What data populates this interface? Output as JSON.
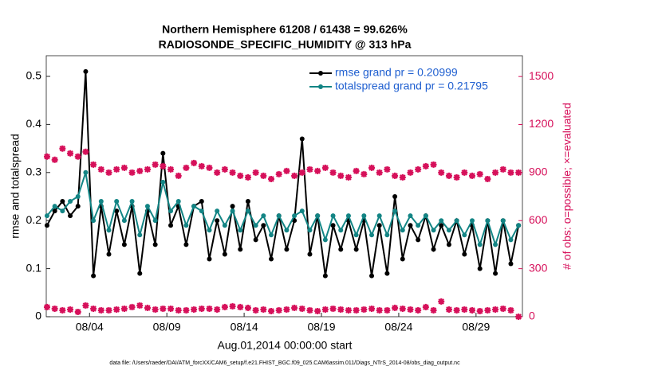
{
  "chart_data": {
    "type": "line",
    "title": "Northern Hemisphere 61208 / 61438 = 99.626%",
    "subtitle": "RADIOSONDE_SPECIFIC_HUMIDITY @ 313 hPa",
    "xlabel": "Aug.01,2014 00:00:00 start",
    "ylabel": "rmse and totalspread",
    "y2label": "# of obs: o=possible; ×=evaluated",
    "footnote": "data file: /Users/raeder/DAI/ATM_forcXX/CAM6_setup/f.e21.FHIST_BGC.f09_025.CAM6assim.011/Diags_NTrS_2014-08/obs_diag_output.nc",
    "xlim": [
      1.2,
      32
    ],
    "xticks": [
      {
        "value": 4,
        "label": "08/04"
      },
      {
        "value": 9,
        "label": "08/09"
      },
      {
        "value": 14,
        "label": "08/14"
      },
      {
        "value": 19,
        "label": "08/19"
      },
      {
        "value": 24,
        "label": "08/24"
      },
      {
        "value": 29,
        "label": "08/29"
      }
    ],
    "ylim": [
      0,
      0.543
    ],
    "yticks": [
      0,
      0.1,
      0.2,
      0.3,
      0.4,
      0.5
    ],
    "y2lim": [
      0,
      1630
    ],
    "y2ticks": [
      0,
      300,
      600,
      900,
      1200,
      1500
    ],
    "grid": false,
    "legend": "upper right",
    "x": [
      1.25,
      1.75,
      2.25,
      2.75,
      3.25,
      3.75,
      4.25,
      4.75,
      5.25,
      5.75,
      6.25,
      6.75,
      7.25,
      7.75,
      8.25,
      8.75,
      9.25,
      9.75,
      10.25,
      10.75,
      11.25,
      11.75,
      12.25,
      12.75,
      13.25,
      13.75,
      14.25,
      14.75,
      15.25,
      15.75,
      16.25,
      16.75,
      17.25,
      17.75,
      18.25,
      18.75,
      19.25,
      19.75,
      20.25,
      20.75,
      21.25,
      21.75,
      22.25,
      22.75,
      23.25,
      23.75,
      24.25,
      24.75,
      25.25,
      25.75,
      26.25,
      26.75,
      27.25,
      27.75,
      28.25,
      28.75,
      29.25,
      29.75,
      30.25,
      30.75,
      31.25,
      31.75
    ],
    "series": [
      {
        "name": "rmse grand pr = 0.20999",
        "color": "#000000",
        "marker": "line",
        "values": [
          0.19,
          0.22,
          0.24,
          0.21,
          0.23,
          0.51,
          0.085,
          0.23,
          0.13,
          0.22,
          0.15,
          0.23,
          0.09,
          0.22,
          0.15,
          0.34,
          0.19,
          0.23,
          0.15,
          0.23,
          0.24,
          0.12,
          0.2,
          0.13,
          0.23,
          0.14,
          0.24,
          0.16,
          0.19,
          0.12,
          0.21,
          0.14,
          0.2,
          0.37,
          0.13,
          0.21,
          0.085,
          0.19,
          0.14,
          0.2,
          0.14,
          0.2,
          0.085,
          0.19,
          0.09,
          0.25,
          0.12,
          0.19,
          0.16,
          0.21,
          0.14,
          0.19,
          0.15,
          0.2,
          0.13,
          0.19,
          0.1,
          0.2,
          0.09,
          0.2,
          0.11,
          0.19
        ]
      },
      {
        "name": "totalspread grand pr = 0.21795",
        "color": "#138585",
        "marker": "line",
        "values": [
          0.21,
          0.23,
          0.22,
          0.24,
          0.25,
          0.3,
          0.2,
          0.24,
          0.18,
          0.24,
          0.2,
          0.24,
          0.17,
          0.23,
          0.2,
          0.28,
          0.22,
          0.24,
          0.19,
          0.23,
          0.22,
          0.18,
          0.22,
          0.19,
          0.22,
          0.18,
          0.22,
          0.19,
          0.21,
          0.17,
          0.21,
          0.18,
          0.21,
          0.22,
          0.18,
          0.21,
          0.16,
          0.21,
          0.18,
          0.21,
          0.17,
          0.21,
          0.17,
          0.21,
          0.17,
          0.22,
          0.18,
          0.21,
          0.19,
          0.21,
          0.18,
          0.2,
          0.18,
          0.2,
          0.17,
          0.2,
          0.15,
          0.2,
          0.15,
          0.2,
          0.16,
          0.19
        ]
      },
      {
        "color": "#d6105a",
        "marker": "scatter",
        "axis": "y2",
        "values": [
          1000,
          980,
          1050,
          1020,
          1000,
          1030,
          950,
          920,
          900,
          920,
          930,
          900,
          910,
          920,
          950,
          940,
          920,
          880,
          930,
          960,
          940,
          930,
          900,
          920,
          900,
          880,
          870,
          900,
          880,
          860,
          890,
          910,
          880,
          900,
          920,
          910,
          930,
          900,
          880,
          870,
          910,
          890,
          930,
          900,
          920,
          880,
          870,
          900,
          920,
          940,
          950,
          900,
          880,
          870,
          900,
          880,
          890,
          860,
          900,
          920,
          900,
          900
        ]
      },
      {
        "color": "#d6105a",
        "marker": "scatter",
        "axis": "y2",
        "values": [
          60,
          50,
          40,
          45,
          30,
          70,
          50,
          40,
          40,
          45,
          50,
          60,
          70,
          55,
          45,
          50,
          50,
          40,
          40,
          45,
          50,
          50,
          45,
          60,
          65,
          60,
          55,
          40,
          45,
          35,
          40,
          45,
          55,
          50,
          40,
          35,
          45,
          50,
          45,
          40,
          40,
          45,
          50,
          40,
          40,
          55,
          50,
          45,
          40,
          60,
          40,
          95,
          45,
          40,
          45,
          40,
          35,
          40,
          45,
          50,
          40,
          0
        ]
      }
    ]
  }
}
